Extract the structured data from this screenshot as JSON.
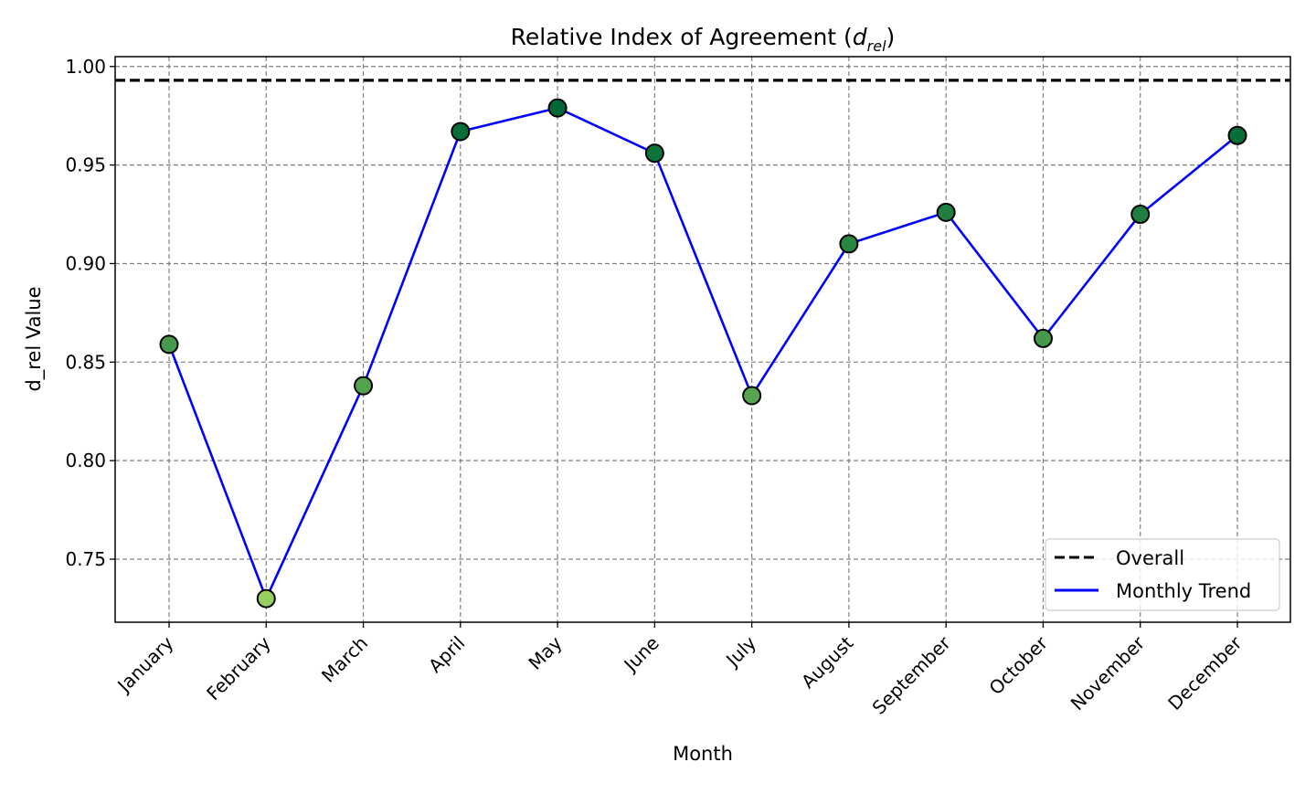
{
  "chart_data": {
    "type": "line",
    "title": {
      "prefix": "Relative Index of Agreement (",
      "symbol": "d",
      "subscript": "rel",
      "suffix": ")"
    },
    "xlabel": "Month",
    "ylabel": "d_rel Value",
    "categories": [
      "January",
      "February",
      "March",
      "April",
      "May",
      "June",
      "July",
      "August",
      "September",
      "October",
      "November",
      "December"
    ],
    "series": [
      {
        "name": "Monthly Trend",
        "values": [
          0.859,
          0.73,
          0.838,
          0.967,
          0.979,
          0.956,
          0.833,
          0.91,
          0.926,
          0.862,
          0.925,
          0.965
        ],
        "line_color": "#0000ff",
        "marker": "circle",
        "marker_edge_color": "#000000",
        "marker_colormap": "greens"
      }
    ],
    "reference_lines": [
      {
        "name": "Overall",
        "value": 0.993,
        "color": "#000000",
        "style": "dashed"
      }
    ],
    "ylim": [
      0.718,
      1.005
    ],
    "yticks": [
      "0.75",
      "0.80",
      "0.85",
      "0.90",
      "0.95",
      "1.00"
    ],
    "grid": true,
    "legend_position": "lower-right"
  }
}
